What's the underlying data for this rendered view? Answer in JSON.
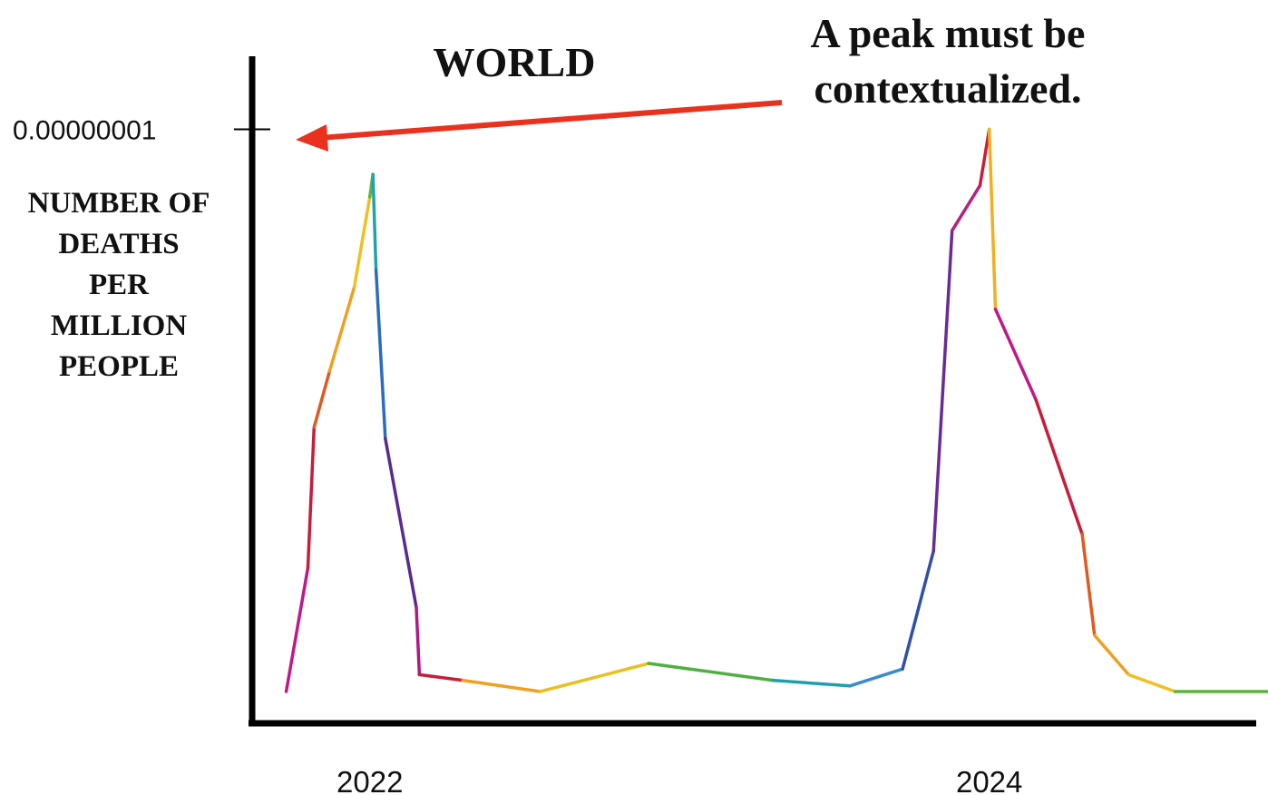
{
  "chart_data": {
    "type": "line",
    "title": "WORLD",
    "annotation": {
      "lines": [
        "A peak must be",
        "contextualized."
      ],
      "arrow_color": "#e8321e"
    },
    "ylabel_lines": [
      "NUMBER OF",
      "DEATHS",
      "PER",
      "MILLION",
      "PEOPLE"
    ],
    "y_ticks": [
      {
        "value": 1e-08,
        "label": "0.00000001"
      }
    ],
    "x_ticks": [
      {
        "value": 2022.0,
        "label": "2022"
      },
      {
        "value": 2024.0,
        "label": "2024"
      }
    ],
    "xlim": [
      2021.62,
      2024.9
    ],
    "ylim": [
      0,
      1.13e-08
    ],
    "grid": false,
    "legend": "none",
    "series": [
      {
        "colors": [
          "#c0188a",
          "#c81c3a",
          "#e05a1e",
          "#f0a020",
          "#f0c020",
          "#5bb53a",
          "#22a3a8",
          "#2a6cc0",
          "#5a2a90",
          "#b0188a",
          "#c81c3a",
          "#f0a020",
          "#e8c020",
          "#4fb040",
          "#1ea0a8",
          "#3a8ad0",
          "#3050a8",
          "#6a2a98",
          "#b82080",
          "#c81c3a",
          "#f0b020"
        ],
        "points": [
          {
            "x": 2021.73,
            "y": 0.0
          },
          {
            "x": 2021.8,
            "y": 2.2e-09
          },
          {
            "x": 2021.82,
            "y": 4.7e-09
          },
          {
            "x": 2021.87,
            "y": 5.7e-09
          },
          {
            "x": 2021.95,
            "y": 7.2e-09
          },
          {
            "x": 2022.0,
            "y": 8.8e-09
          },
          {
            "x": 2022.01,
            "y": 9.2e-09
          },
          {
            "x": 2022.02,
            "y": 7.5e-09
          },
          {
            "x": 2022.05,
            "y": 4.5e-09
          },
          {
            "x": 2022.15,
            "y": 1.5e-09
          },
          {
            "x": 2022.16,
            "y": 3e-10
          },
          {
            "x": 2022.3,
            "y": 2e-10
          },
          {
            "x": 2022.55,
            "y": 0.0
          },
          {
            "x": 2022.9,
            "y": 5e-10
          },
          {
            "x": 2023.3,
            "y": 2e-10
          },
          {
            "x": 2023.55,
            "y": 1e-10
          },
          {
            "x": 2023.72,
            "y": 4e-10
          },
          {
            "x": 2023.82,
            "y": 2.5e-09
          },
          {
            "x": 2023.88,
            "y": 8.2e-09
          },
          {
            "x": 2023.97,
            "y": 9e-09
          },
          {
            "x": 2024.0,
            "y": 1e-08
          },
          {
            "x": 2024.02,
            "y": 6.8e-09
          },
          {
            "x": 2024.15,
            "y": 5.2e-09
          },
          {
            "x": 2024.3,
            "y": 2.8e-09
          },
          {
            "x": 2024.34,
            "y": 1e-09
          },
          {
            "x": 2024.45,
            "y": 3e-10
          },
          {
            "x": 2024.6,
            "y": 0.0
          },
          {
            "x": 2024.9,
            "y": 0.0
          }
        ]
      }
    ]
  }
}
